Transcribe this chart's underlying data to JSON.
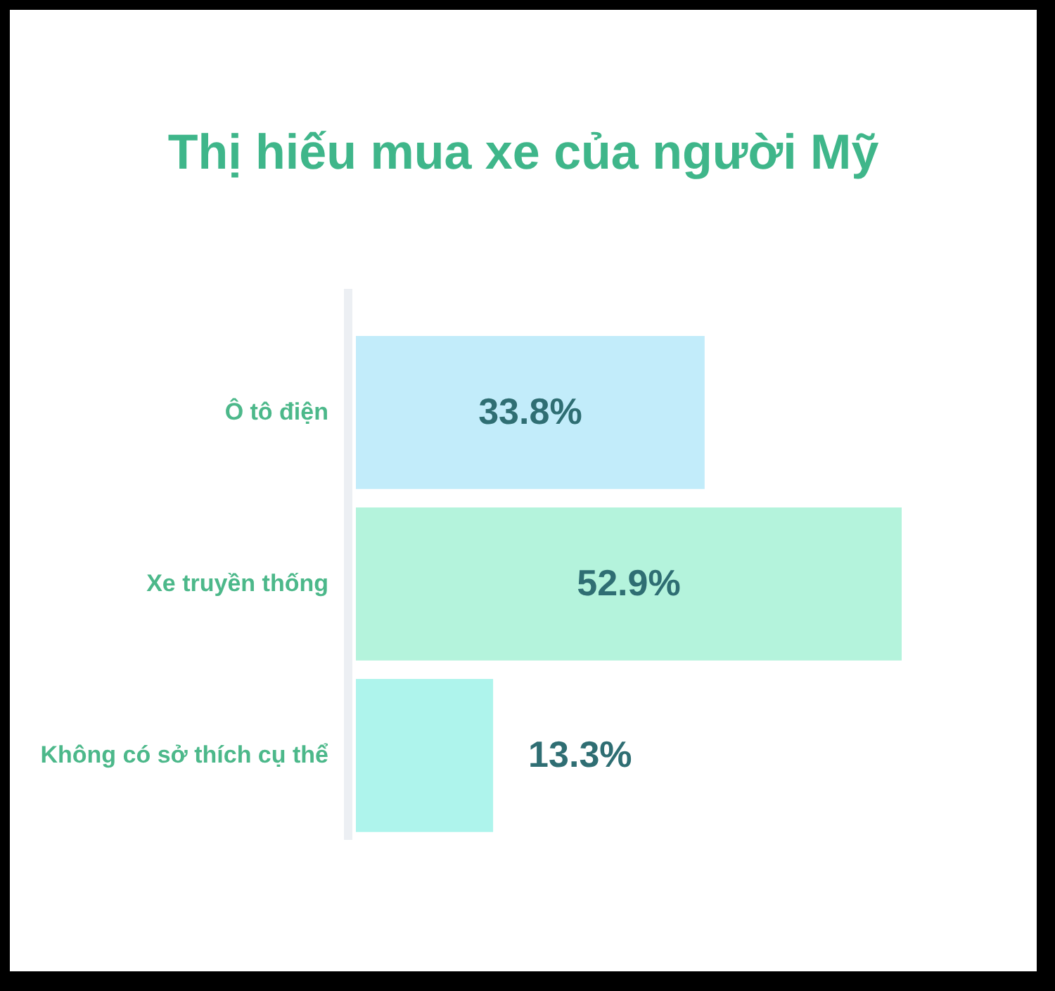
{
  "chart_data": {
    "type": "bar",
    "orientation": "horizontal",
    "title": "Thị hiếu mua xe của người Mỹ",
    "categories": [
      "Ô tô điện",
      "Xe truyền thống",
      "Không có sở thích cụ thể"
    ],
    "values": [
      33.8,
      52.9,
      13.3
    ],
    "colors": [
      "#c2ecfa",
      "#b4f3dc",
      "#aef4ec"
    ],
    "value_labels": [
      "33.8%",
      "52.9%",
      "13.3%"
    ]
  }
}
